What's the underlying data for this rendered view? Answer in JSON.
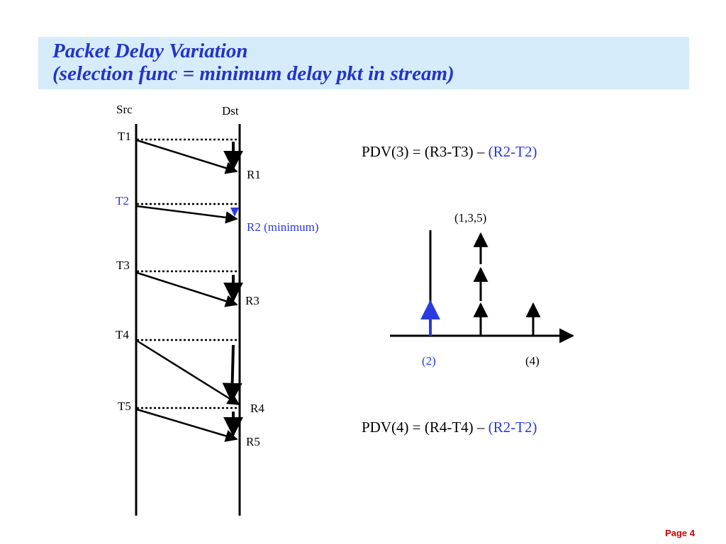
{
  "title": {
    "line1": "Packet Delay Variation",
    "line2": "(selection func = minimum delay pkt in stream)"
  },
  "lanes": {
    "src": "Src",
    "dst": "Dst"
  },
  "sends": [
    {
      "send": "T1",
      "recv": "R1",
      "minimum": false
    },
    {
      "send": "T2",
      "recv": "R2 (minimum)",
      "minimum": true
    },
    {
      "send": "T3",
      "recv": "R3",
      "minimum": false
    },
    {
      "send": "T4",
      "recv": "R4",
      "minimum": false
    },
    {
      "send": "T5",
      "recv": "R5",
      "minimum": false
    }
  ],
  "formulas": {
    "pdv3": {
      "main": "PDV(3) = (R3-T3) – ",
      "ref": "(R2-T2)"
    },
    "pdv4": {
      "main": "PDV(4) = (R4-T4) – ",
      "ref": "(R2-T2)"
    }
  },
  "histogram": {
    "top_label": "(1,3,5)",
    "axis_label_min": "(2)",
    "axis_label_4": "(4)"
  },
  "colors": {
    "title": "#2233cc",
    "highlight": "#2a3ae0",
    "banner": "#d6ecfb",
    "page_number": "#cc0000",
    "ink": "#000000"
  },
  "footer": {
    "page": "Page 4"
  }
}
